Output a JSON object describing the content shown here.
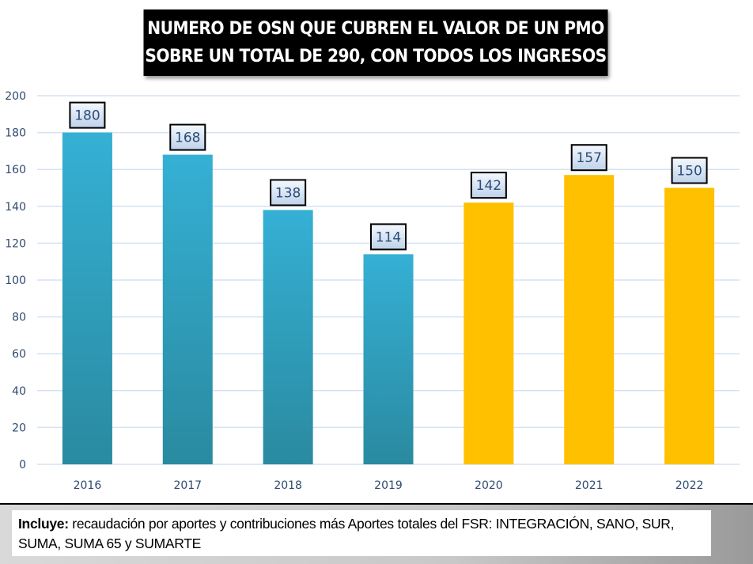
{
  "title": {
    "line1": "NUMERO DE OSN QUE CUBREN EL VALOR DE UN PMO",
    "line2": "SOBRE UN TOTAL DE 290, CON TODOS LOS INGRESOS"
  },
  "colors": {
    "series_2016_2019": "#35b0d4",
    "series_2016_2019_bottom": "#2a8aa0",
    "series_2020_2022": "#ffc000",
    "gridline": "#d5e2f2",
    "axis_text": "#2f4a6e"
  },
  "chart_data": {
    "type": "bar",
    "title": "NUMERO DE OSN QUE CUBREN EL VALOR DE UN PMO SOBRE UN TOTAL DE 290, CON TODOS LOS INGRESOS",
    "xlabel": "",
    "ylabel": "",
    "categories": [
      "2016",
      "2017",
      "2018",
      "2019",
      "2020",
      "2021",
      "2022"
    ],
    "values": [
      180,
      168,
      138,
      114,
      142,
      157,
      150
    ],
    "bar_color_groups": [
      "blue",
      "blue",
      "blue",
      "blue",
      "yellow",
      "yellow",
      "yellow"
    ],
    "data_labels": [
      "180",
      "168",
      "138",
      "114",
      "142",
      "157",
      "150"
    ],
    "ylim": [
      0,
      200
    ],
    "yticks": [
      0,
      20,
      40,
      60,
      80,
      100,
      120,
      140,
      160,
      180,
      200
    ],
    "grid": true,
    "legend": "none"
  },
  "footer": {
    "label_bold": "Incluye:",
    "text": " recaudación por aportes y contribuciones más Aportes totales del FSR: INTEGRACIÓN, SANO, SUR, SUMA, SUMA 65 y SUMARTE"
  }
}
